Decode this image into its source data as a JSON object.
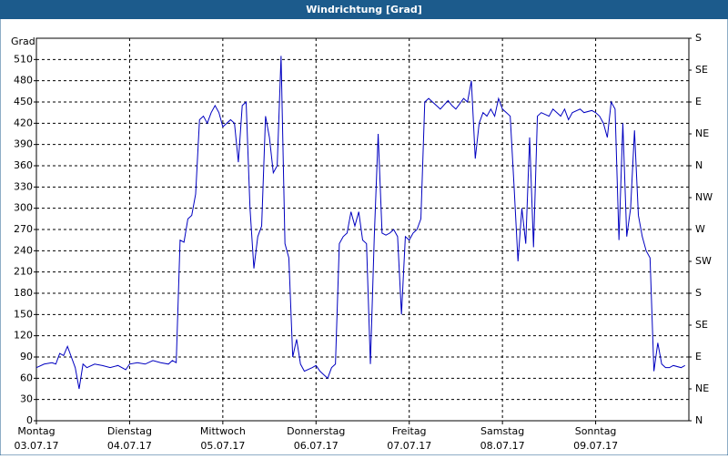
{
  "chart_data": {
    "type": "line",
    "title": "Windrichtung [Grad]",
    "ylabel": "Grad",
    "xlim": [
      0,
      168
    ],
    "xticks": [
      {
        "value": 0,
        "label": "Montag"
      },
      {
        "value": 24,
        "label": "Dienstag"
      },
      {
        "value": 48,
        "label": "Mittwoch"
      },
      {
        "value": 72,
        "label": "Donnerstag"
      },
      {
        "value": 96,
        "label": "Freitag"
      },
      {
        "value": 120,
        "label": "Samstag"
      },
      {
        "value": 144,
        "label": "Sonntag"
      }
    ],
    "xtick_dates": [
      "03.07.17",
      "04.07.17",
      "05.07.17",
      "06.07.17",
      "07.07.17",
      "08.07.17",
      "09.07.17"
    ],
    "ylim": [
      0,
      540
    ],
    "yticks": [
      0,
      30,
      60,
      90,
      120,
      150,
      180,
      210,
      240,
      270,
      300,
      330,
      360,
      390,
      420,
      450,
      480,
      510
    ],
    "y2lim": [
      0,
      540
    ],
    "y2ticks": [
      {
        "value": 0,
        "label": "N"
      },
      {
        "value": 45,
        "label": "NE"
      },
      {
        "value": 90,
        "label": "E"
      },
      {
        "value": 135,
        "label": "SE"
      },
      {
        "value": 180,
        "label": "S"
      },
      {
        "value": 225,
        "label": "SW"
      },
      {
        "value": 270,
        "label": "W"
      },
      {
        "value": 315,
        "label": "NW"
      },
      {
        "value": 360,
        "label": "N"
      },
      {
        "value": 405,
        "label": "NE"
      },
      {
        "value": 450,
        "label": "E"
      },
      {
        "value": 495,
        "label": "SE"
      },
      {
        "value": 540,
        "label": "S"
      }
    ],
    "grid": true,
    "series": [
      {
        "name": "Windrichtung",
        "color": "#0000c0",
        "x": [
          0,
          2,
          4,
          5,
          6,
          7,
          8,
          9,
          10,
          11,
          12,
          13,
          15,
          17,
          19,
          21,
          23,
          24,
          26,
          28,
          30,
          32,
          34,
          35,
          36,
          37,
          38,
          39,
          40,
          41,
          42,
          43,
          44,
          45,
          46,
          47,
          48,
          49,
          50,
          51,
          52,
          53,
          54,
          55,
          56,
          57,
          58,
          59,
          60,
          61,
          62,
          63,
          64,
          65,
          66,
          67,
          68,
          69,
          71,
          72,
          73,
          74,
          75,
          76,
          77,
          78,
          79,
          80,
          81,
          82,
          83,
          84,
          85,
          86,
          87,
          88,
          89,
          90,
          91,
          92,
          93,
          94,
          95,
          96,
          97,
          98,
          99,
          100,
          101,
          102,
          103,
          104,
          106,
          107,
          108,
          110,
          111,
          112,
          113,
          114,
          115,
          116,
          117,
          118,
          119,
          120,
          121,
          122,
          123,
          124,
          125,
          126,
          127,
          128,
          129,
          130,
          132,
          133,
          134,
          135,
          136,
          137,
          138,
          140,
          141,
          143,
          144,
          145,
          146,
          147,
          148,
          149,
          150,
          151,
          152,
          153,
          154,
          155,
          156,
          157,
          158,
          159,
          160,
          161,
          162,
          163,
          164,
          166,
          167
        ],
        "values": [
          75,
          80,
          82,
          80,
          95,
          92,
          105,
          90,
          75,
          45,
          80,
          75,
          80,
          78,
          75,
          78,
          72,
          80,
          82,
          80,
          85,
          82,
          80,
          85,
          82,
          255,
          252,
          285,
          290,
          320,
          425,
          430,
          420,
          435,
          445,
          435,
          415,
          420,
          425,
          420,
          365,
          445,
          450,
          300,
          215,
          260,
          275,
          430,
          400,
          350,
          360,
          515,
          250,
          230,
          90,
          115,
          80,
          70,
          75,
          78,
          70,
          65,
          60,
          75,
          80,
          250,
          260,
          265,
          295,
          275,
          295,
          255,
          250,
          80,
          260,
          405,
          265,
          262,
          265,
          270,
          260,
          150,
          260,
          255,
          265,
          270,
          285,
          450,
          455,
          450,
          445,
          440,
          452,
          445,
          440,
          455,
          450,
          480,
          370,
          420,
          435,
          430,
          440,
          430,
          455,
          440,
          435,
          430,
          330,
          225,
          300,
          250,
          400,
          245,
          430,
          435,
          430,
          440,
          435,
          430,
          440,
          425,
          435,
          440,
          435,
          438,
          435,
          430,
          420,
          400,
          450,
          440,
          255,
          420,
          260,
          300,
          410,
          290,
          260,
          240,
          230,
          70,
          110,
          80,
          75,
          75,
          78,
          75,
          78
        ]
      }
    ]
  }
}
